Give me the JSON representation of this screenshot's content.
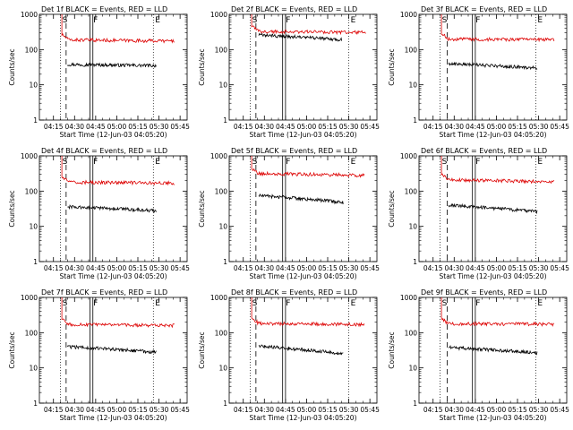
{
  "chart_data": [
    {
      "type": "line",
      "title": "Det 1f BLACK = Events, RED = LLD",
      "xlabel": "Start Time (12-Jun-03 04:05:20)",
      "ylabel": "Counts/sec",
      "x_ticks": [
        "04:15",
        "04:30",
        "04:45",
        "05:00",
        "05:15",
        "05:30",
        "05:45"
      ],
      "y_ticks": [
        "1",
        "10",
        "100",
        "1000"
      ],
      "yscale": "log",
      "ylim": [
        1,
        1000
      ],
      "markers": [
        {
          "label": "S",
          "time": "04:20"
        },
        {
          "label": "F",
          "time": "04:42"
        },
        {
          "label": "E",
          "time": "05:26"
        }
      ],
      "dashed_line_time": "04:24",
      "series": [
        {
          "name": "Events",
          "color": "#000000",
          "start": "04:25",
          "end": "05:28",
          "level": 38,
          "tail": 35,
          "init": 0
        },
        {
          "name": "LLD",
          "color": "#dd0000",
          "start": "04:21",
          "end": "05:41",
          "level": 190,
          "tail": 175,
          "init": 1000
        }
      ]
    },
    {
      "type": "line",
      "title": "Det 2f BLACK = Events, RED = LLD",
      "xlabel": "Start Time (12-Jun-03 04:05:20)",
      "ylabel": "Counts/sec",
      "x_ticks": [
        "04:15",
        "04:30",
        "04:45",
        "05:00",
        "05:15",
        "05:30",
        "05:45"
      ],
      "y_ticks": [
        "1",
        "10",
        "100",
        "1000"
      ],
      "yscale": "log",
      "ylim": [
        1,
        1000
      ],
      "markers": [
        {
          "label": "S",
          "time": "04:20"
        },
        {
          "label": "F",
          "time": "04:44"
        },
        {
          "label": "E",
          "time": "05:30"
        }
      ],
      "dashed_line_time": "04:24",
      "series": [
        {
          "name": "Events",
          "color": "#000000",
          "start": "04:26",
          "end": "05:25",
          "level": 260,
          "tail": 190,
          "init": 0
        },
        {
          "name": "LLD",
          "color": "#dd0000",
          "start": "04:21",
          "end": "05:42",
          "level": 330,
          "tail": 310,
          "init": 1000
        }
      ]
    },
    {
      "type": "line",
      "title": "Det 3f BLACK = Events, RED = LLD",
      "xlabel": "Start Time (12-Jun-03 04:05:20)",
      "ylabel": "Counts/sec",
      "x_ticks": [
        "04:15",
        "04:30",
        "04:45",
        "05:00",
        "05:15",
        "05:30",
        "05:45"
      ],
      "y_ticks": [
        "1",
        "10",
        "100",
        "1000"
      ],
      "yscale": "log",
      "ylim": [
        1,
        1000
      ],
      "markers": [
        {
          "label": "S",
          "time": "04:20"
        },
        {
          "label": "F",
          "time": "04:44"
        },
        {
          "label": "E",
          "time": "05:28"
        }
      ],
      "dashed_line_time": "04:25",
      "series": [
        {
          "name": "Events",
          "color": "#000000",
          "start": "04:26",
          "end": "05:29",
          "level": 40,
          "tail": 30,
          "init": 0
        },
        {
          "name": "LLD",
          "color": "#dd0000",
          "start": "04:21",
          "end": "05:41",
          "level": 200,
          "tail": 190,
          "init": 1000
        }
      ]
    },
    {
      "type": "line",
      "title": "Det 4f BLACK = Events, RED = LLD",
      "xlabel": "Start Time (12-Jun-03 04:05:20)",
      "ylabel": "Counts/sec",
      "x_ticks": [
        "04:15",
        "04:30",
        "04:45",
        "05:00",
        "05:15",
        "05:30",
        "05:45"
      ],
      "y_ticks": [
        "1",
        "10",
        "100",
        "1000"
      ],
      "yscale": "log",
      "ylim": [
        1,
        1000
      ],
      "markers": [
        {
          "label": "S",
          "time": "04:20"
        },
        {
          "label": "F",
          "time": "04:42"
        },
        {
          "label": "E",
          "time": "05:26"
        }
      ],
      "dashed_line_time": "04:24",
      "series": [
        {
          "name": "Events",
          "color": "#000000",
          "start": "04:25",
          "end": "05:28",
          "level": 36,
          "tail": 28,
          "init": 0
        },
        {
          "name": "LLD",
          "color": "#dd0000",
          "start": "04:21",
          "end": "05:41",
          "level": 180,
          "tail": 170,
          "init": 1000
        }
      ]
    },
    {
      "type": "line",
      "title": "Det 5f BLACK = Events, RED = LLD",
      "xlabel": "Start Time (12-Jun-03 04:05:20)",
      "ylabel": "Counts/sec",
      "x_ticks": [
        "04:15",
        "04:30",
        "04:45",
        "05:00",
        "05:15",
        "05:30",
        "05:45"
      ],
      "y_ticks": [
        "1",
        "10",
        "100",
        "1000"
      ],
      "yscale": "log",
      "ylim": [
        1,
        1000
      ],
      "markers": [
        {
          "label": "S",
          "time": "04:20"
        },
        {
          "label": "F",
          "time": "04:44"
        },
        {
          "label": "E",
          "time": "05:30"
        }
      ],
      "dashed_line_time": "04:24",
      "series": [
        {
          "name": "Events",
          "color": "#000000",
          "start": "04:26",
          "end": "05:26",
          "level": 75,
          "tail": 48,
          "init": 0
        },
        {
          "name": "LLD",
          "color": "#dd0000",
          "start": "04:21",
          "end": "05:41",
          "level": 320,
          "tail": 280,
          "init": 1000
        }
      ]
    },
    {
      "type": "line",
      "title": "Det 6f BLACK = Events, RED = LLD",
      "xlabel": "Start Time (12-Jun-03 04:05:20)",
      "ylabel": "Counts/sec",
      "x_ticks": [
        "04:15",
        "04:30",
        "04:45",
        "05:00",
        "05:15",
        "05:30",
        "05:45"
      ],
      "y_ticks": [
        "1",
        "10",
        "100",
        "1000"
      ],
      "yscale": "log",
      "ylim": [
        1,
        1000
      ],
      "markers": [
        {
          "label": "S",
          "time": "04:20"
        },
        {
          "label": "F",
          "time": "04:44"
        },
        {
          "label": "E",
          "time": "05:28"
        }
      ],
      "dashed_line_time": "04:25",
      "series": [
        {
          "name": "Events",
          "color": "#000000",
          "start": "04:26",
          "end": "05:29",
          "level": 40,
          "tail": 26,
          "init": 0
        },
        {
          "name": "LLD",
          "color": "#dd0000",
          "start": "04:21",
          "end": "05:41",
          "level": 210,
          "tail": 185,
          "init": 1000
        }
      ]
    },
    {
      "type": "line",
      "title": "Det 7f BLACK = Events, RED = LLD",
      "xlabel": "Start Time (12-Jun-03 04:05:20)",
      "ylabel": "Counts/sec",
      "x_ticks": [
        "04:15",
        "04:30",
        "04:45",
        "05:00",
        "05:15",
        "05:30",
        "05:45"
      ],
      "y_ticks": [
        "1",
        "10",
        "100",
        "1000"
      ],
      "yscale": "log",
      "ylim": [
        1,
        1000
      ],
      "markers": [
        {
          "label": "S",
          "time": "04:20"
        },
        {
          "label": "F",
          "time": "04:42"
        },
        {
          "label": "E",
          "time": "05:26"
        }
      ],
      "dashed_line_time": "04:24",
      "series": [
        {
          "name": "Events",
          "color": "#000000",
          "start": "04:25",
          "end": "05:28",
          "level": 40,
          "tail": 28,
          "init": 0
        },
        {
          "name": "LLD",
          "color": "#dd0000",
          "start": "04:21",
          "end": "05:41",
          "level": 170,
          "tail": 160,
          "init": 1000
        }
      ]
    },
    {
      "type": "line",
      "title": "Det 8f BLACK = Events, RED = LLD",
      "xlabel": "Start Time (12-Jun-03 04:05:20)",
      "ylabel": "Counts/sec",
      "x_ticks": [
        "04:15",
        "04:30",
        "04:45",
        "05:00",
        "05:15",
        "05:30",
        "05:45"
      ],
      "y_ticks": [
        "1",
        "10",
        "100",
        "1000"
      ],
      "yscale": "log",
      "ylim": [
        1,
        1000
      ],
      "markers": [
        {
          "label": "S",
          "time": "04:20"
        },
        {
          "label": "F",
          "time": "04:44"
        },
        {
          "label": "E",
          "time": "05:30"
        }
      ],
      "dashed_line_time": "04:24",
      "series": [
        {
          "name": "Events",
          "color": "#000000",
          "start": "04:26",
          "end": "05:26",
          "level": 42,
          "tail": 25,
          "init": 0
        },
        {
          "name": "LLD",
          "color": "#dd0000",
          "start": "04:21",
          "end": "05:41",
          "level": 185,
          "tail": 170,
          "init": 1000
        }
      ]
    },
    {
      "type": "line",
      "title": "Det 9f BLACK = Events, RED = LLD",
      "xlabel": "Start Time (12-Jun-03 04:05:20)",
      "ylabel": "Counts/sec",
      "x_ticks": [
        "04:15",
        "04:30",
        "04:45",
        "05:00",
        "05:15",
        "05:30",
        "05:45"
      ],
      "y_ticks": [
        "1",
        "10",
        "100",
        "1000"
      ],
      "yscale": "log",
      "ylim": [
        1,
        1000
      ],
      "markers": [
        {
          "label": "S",
          "time": "04:20"
        },
        {
          "label": "F",
          "time": "04:44"
        },
        {
          "label": "E",
          "time": "05:28"
        }
      ],
      "dashed_line_time": "04:25",
      "series": [
        {
          "name": "Events",
          "color": "#000000",
          "start": "04:26",
          "end": "05:29",
          "level": 38,
          "tail": 27,
          "init": 0
        },
        {
          "name": "LLD",
          "color": "#dd0000",
          "start": "04:21",
          "end": "05:41",
          "level": 180,
          "tail": 175,
          "init": 1000
        }
      ]
    }
  ]
}
